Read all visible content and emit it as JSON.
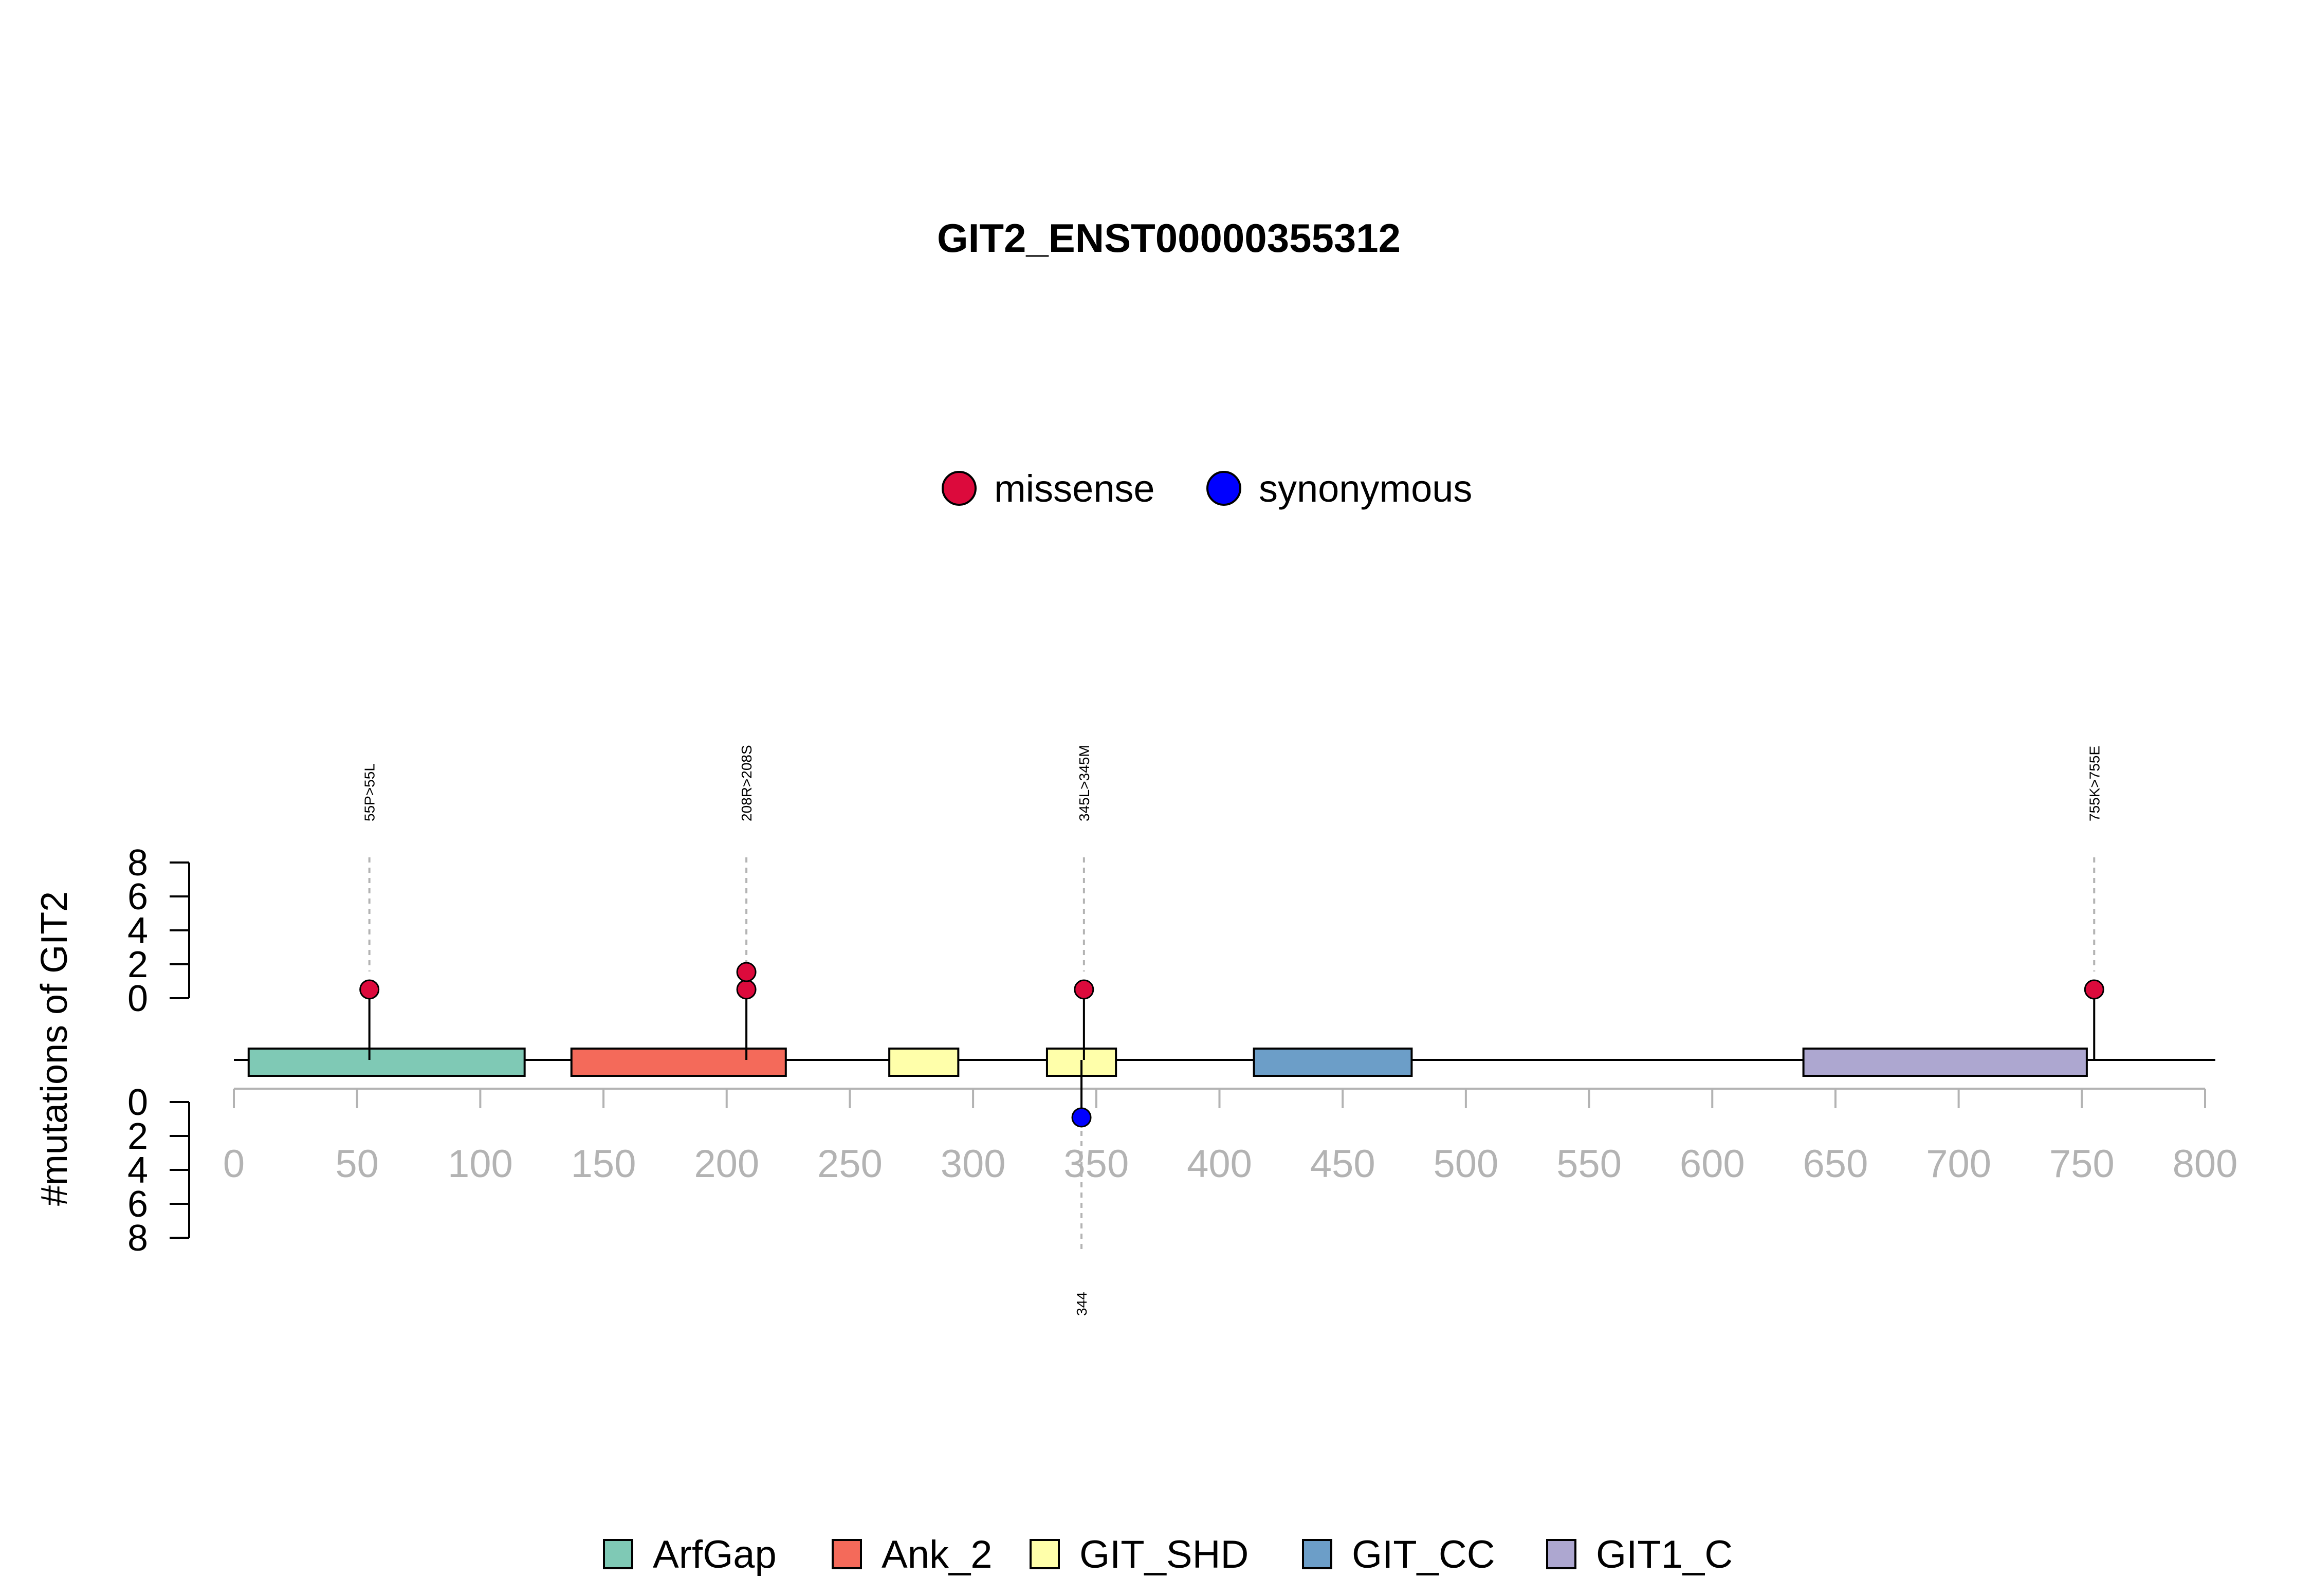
{
  "chart_data": {
    "type": "lollipop",
    "title": "GIT2_ENST00000355312",
    "ylabel": "#mutations of GIT2",
    "xlim": [
      0,
      800
    ],
    "x_ticks": [
      0,
      50,
      100,
      150,
      200,
      250,
      300,
      350,
      400,
      450,
      500,
      550,
      600,
      650,
      700,
      750,
      800
    ],
    "y_ticks": [
      0,
      2,
      4,
      6,
      8
    ],
    "ylim": [
      0,
      8
    ],
    "legend_mutations": [
      {
        "name": "missense",
        "color": "#DC0A3C"
      },
      {
        "name": "synonymous",
        "color": "#0000FF"
      }
    ],
    "domains": [
      {
        "name": "ArfGap",
        "start": 6,
        "end": 118,
        "color": "#7FC9B5"
      },
      {
        "name": "Ank_2",
        "start": 137,
        "end": 224,
        "color": "#F46A5A"
      },
      {
        "name": "GIT_SHD",
        "start": 266,
        "end": 294,
        "color": "#FFFFAA"
      },
      {
        "name": "GIT_SHD",
        "start": 330,
        "end": 358,
        "color": "#FFFFAA"
      },
      {
        "name": "GIT_CC",
        "start": 414,
        "end": 478,
        "color": "#6C9EC8"
      },
      {
        "name": "GIT1_C",
        "start": 637,
        "end": 752,
        "color": "#ADA7D0"
      }
    ],
    "domain_legend": [
      {
        "name": "ArfGap",
        "color": "#7FC9B5"
      },
      {
        "name": "Ank_2",
        "color": "#F46A5A"
      },
      {
        "name": "GIT_SHD",
        "color": "#FFFFAA"
      },
      {
        "name": "GIT_CC",
        "color": "#6C9EC8"
      },
      {
        "name": "GIT1_C",
        "color": "#ADA7D0"
      }
    ],
    "mutations_top": [
      {
        "position": 55,
        "label": "55P>55L",
        "type": "missense",
        "count": 1
      },
      {
        "position": 208,
        "label": "208R>208S",
        "type": "missense",
        "count": 2
      },
      {
        "position": 345,
        "label": "345L>345M",
        "type": "missense",
        "count": 1
      },
      {
        "position": 755,
        "label": "755K>755E",
        "type": "missense",
        "count": 1
      }
    ],
    "mutations_bottom": [
      {
        "position": 344,
        "label": "344",
        "type": "synonymous",
        "count": 1
      }
    ]
  }
}
